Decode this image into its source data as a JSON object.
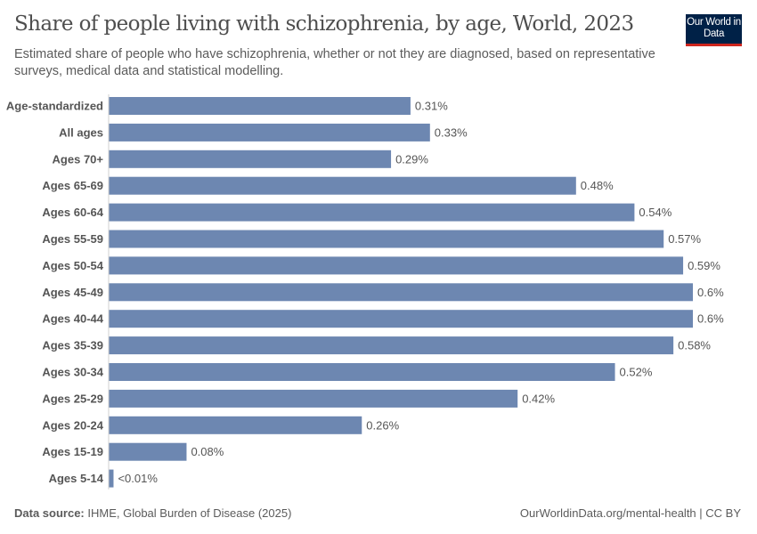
{
  "header": {
    "title": "Share of people living with schizophrenia, by age, World, 2023",
    "subtitle": "Estimated share of people who have schizophrenia, whether or not they are diagnosed, based on representative surveys, medical data and statistical modelling.",
    "logo": "Our World in Data"
  },
  "footer": {
    "source_label": "Data source:",
    "source": "IHME, Global Burden of Disease (2025)",
    "link": "OurWorldinData.org/mental-health | CC BY"
  },
  "chart_data": {
    "type": "bar",
    "orientation": "horizontal",
    "title": "Share of people living with schizophrenia, by age, World, 2023",
    "unit": "%",
    "bar_color": "#6d87b1",
    "categories": [
      "Age-standardized",
      "All ages",
      "Ages 70+",
      "Ages 65-69",
      "Ages 60-64",
      "Ages 55-59",
      "Ages 50-54",
      "Ages 45-49",
      "Ages 40-44",
      "Ages 35-39",
      "Ages 30-34",
      "Ages 25-29",
      "Ages 20-24",
      "Ages 15-19",
      "Ages 5-14"
    ],
    "values": [
      0.31,
      0.33,
      0.29,
      0.48,
      0.54,
      0.57,
      0.59,
      0.6,
      0.6,
      0.58,
      0.52,
      0.42,
      0.26,
      0.08,
      0.005
    ],
    "labels": [
      "0.31%",
      "0.33%",
      "0.29%",
      "0.48%",
      "0.54%",
      "0.57%",
      "0.59%",
      "0.6%",
      "0.6%",
      "0.58%",
      "0.52%",
      "0.42%",
      "0.26%",
      "0.08%",
      "<0.01%"
    ],
    "xlim": [
      0,
      0.6
    ],
    "grid": false
  }
}
